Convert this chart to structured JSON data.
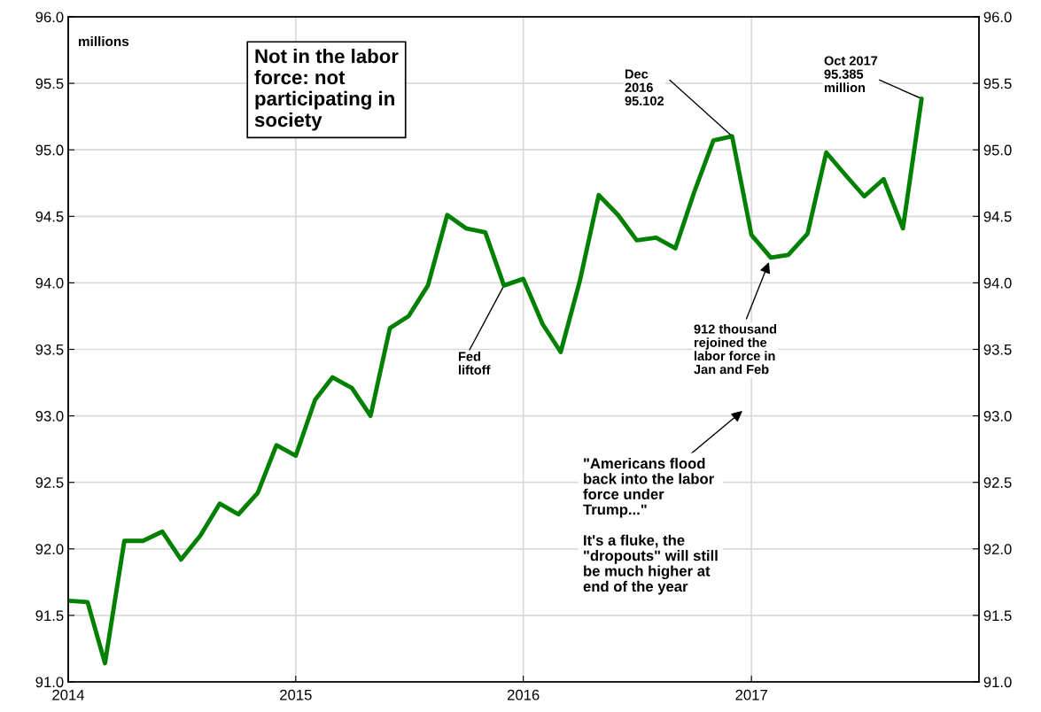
{
  "chart_data": {
    "type": "line",
    "title": "Not in the labor\nforce: not\nparticipating in\nsociety",
    "ylabel": "millions",
    "x": [
      "2014-01",
      "2014-02",
      "2014-03",
      "2014-04",
      "2014-05",
      "2014-06",
      "2014-07",
      "2014-08",
      "2014-09",
      "2014-10",
      "2014-11",
      "2014-12",
      "2015-01",
      "2015-02",
      "2015-03",
      "2015-04",
      "2015-05",
      "2015-06",
      "2015-07",
      "2015-08",
      "2015-09",
      "2015-10",
      "2015-11",
      "2015-12",
      "2016-01",
      "2016-02",
      "2016-03",
      "2016-04",
      "2016-05",
      "2016-06",
      "2016-07",
      "2016-08",
      "2016-09",
      "2016-10",
      "2016-11",
      "2016-12",
      "2017-01",
      "2017-02",
      "2017-03",
      "2017-04",
      "2017-05",
      "2017-06",
      "2017-07",
      "2017-08",
      "2017-09",
      "2017-10"
    ],
    "series": [
      {
        "color": "#008000",
        "values": [
          91.61,
          91.6,
          91.14,
          92.06,
          92.06,
          92.13,
          91.92,
          92.1,
          92.34,
          92.26,
          92.42,
          92.78,
          92.7,
          93.12,
          93.29,
          93.21,
          93.0,
          93.66,
          93.75,
          93.98,
          94.51,
          94.41,
          94.38,
          93.98,
          94.03,
          93.69,
          93.48,
          94.02,
          94.66,
          94.51,
          94.32,
          94.34,
          94.26,
          94.68,
          95.07,
          95.102,
          94.36,
          94.19,
          94.21,
          94.37,
          94.98,
          94.81,
          94.65,
          94.78,
          94.41,
          95.385
        ]
      }
    ],
    "xlim": [
      "2014-01-01",
      "2018-01-01"
    ],
    "xticks": [
      "2014",
      "2015",
      "2016",
      "2017"
    ],
    "ylim": [
      91,
      96
    ],
    "yticks": [
      {
        "value": 91,
        "label": "91.0"
      },
      {
        "value": 91.5,
        "label": "91.5"
      },
      {
        "value": 92,
        "label": "92.0"
      },
      {
        "value": 92.5,
        "label": "92.5"
      },
      {
        "value": 93,
        "label": "93.0"
      },
      {
        "value": 93.5,
        "label": "93.5"
      },
      {
        "value": 94,
        "label": "94.0"
      },
      {
        "value": 94.5,
        "label": "94.5"
      },
      {
        "value": 95,
        "label": "95.0"
      },
      {
        "value": 95.5,
        "label": "95.5"
      },
      {
        "value": 96,
        "label": "96.0"
      }
    ],
    "y2lim": [
      91,
      96
    ],
    "y2ticks": [
      {
        "value": 91,
        "label": "91.0"
      },
      {
        "value": 91.5,
        "label": "91.5"
      },
      {
        "value": 92,
        "label": "92.0"
      },
      {
        "value": 92.5,
        "label": "92.5"
      },
      {
        "value": 93,
        "label": "93.0"
      },
      {
        "value": 93.5,
        "label": "93.5"
      },
      {
        "value": 94,
        "label": "94.0"
      },
      {
        "value": 94.5,
        "label": "94.5"
      },
      {
        "value": 95,
        "label": "95.0"
      },
      {
        "value": 95.5,
        "label": "95.5"
      },
      {
        "value": 96,
        "label": "96.0"
      }
    ],
    "annotations": [
      {
        "text": "Dec\n2016\n95.102",
        "x": "2016-12",
        "y": 95.102
      },
      {
        "text": "Oct 2017\n95.385\nmillion",
        "x": "2017-10",
        "y": 95.385
      },
      {
        "text": "Fed\nliftoff",
        "x": "2015-12",
        "y": 93.98
      },
      {
        "text": "912 thousand\nrejoined the\nlabor force in\nJan and Feb",
        "x": "2017-02",
        "y": 94.19
      },
      "\"Americans flood\nback into the labor\nforce under\nTrump...\"\n\nIt's a fluke, the\n\"dropouts\" will still\nbe much higher at\nend of the year"
    ],
    "grid": true,
    "marker": "none",
    "line_style": "solid"
  }
}
